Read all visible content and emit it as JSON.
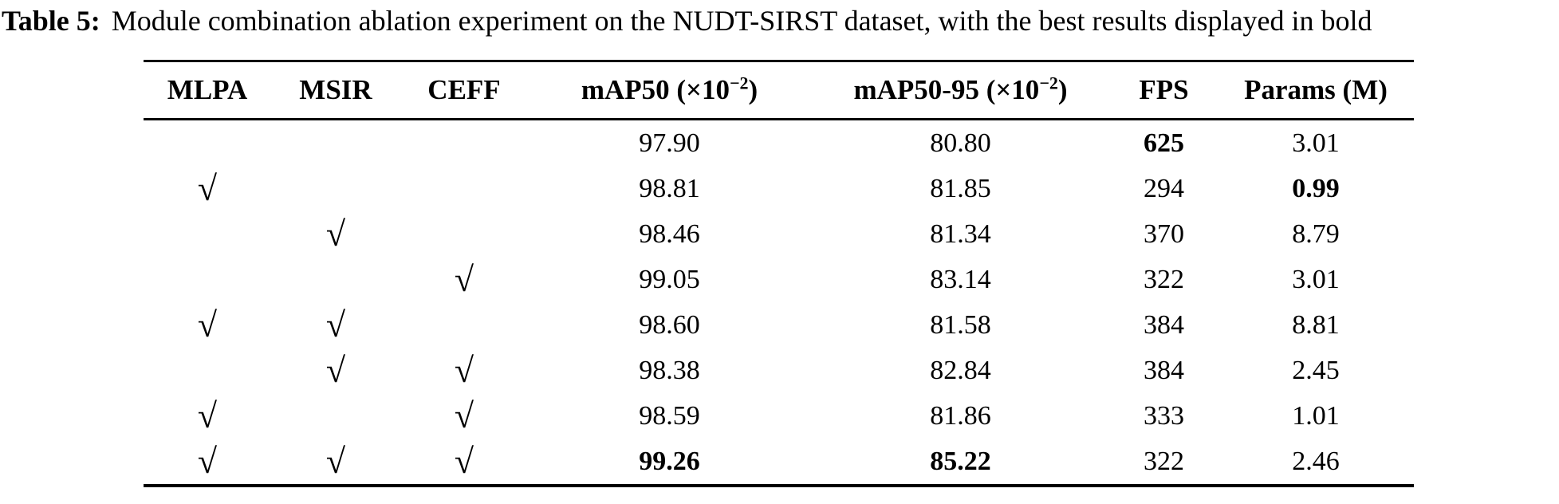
{
  "style": {
    "text_color": "#000000",
    "background_color": "#ffffff"
  },
  "caption": {
    "label": "Table 5:",
    "text": "Module combination ablation experiment on the NUDT-SIRST dataset, with the best results displayed in bold"
  },
  "table": {
    "check_glyph_name": "checkmark-radical-style",
    "headers": [
      {
        "text": "MLPA"
      },
      {
        "text": "MSIR"
      },
      {
        "text": "CEFF"
      },
      {
        "text": "mAP50 (×10",
        "sup": "−2",
        "suffix": ")"
      },
      {
        "text": "mAP50-95 (×10",
        "sup": "−2",
        "suffix": ")"
      },
      {
        "text": "FPS"
      },
      {
        "text": "Params (M)"
      }
    ],
    "rows": [
      {
        "cells": [
          {
            "v": "",
            "style": "normal"
          },
          {
            "v": "",
            "style": "normal"
          },
          {
            "v": "",
            "style": "normal"
          },
          {
            "v": "97.90",
            "style": "normal"
          },
          {
            "v": "80.80",
            "style": "normal"
          },
          {
            "v": "625",
            "style": "bold"
          },
          {
            "v": "3.01",
            "style": "normal"
          }
        ]
      },
      {
        "cells": [
          {
            "v": "√",
            "style": "normal"
          },
          {
            "v": "",
            "style": "normal"
          },
          {
            "v": "",
            "style": "normal"
          },
          {
            "v": "98.81",
            "style": "normal"
          },
          {
            "v": "81.85",
            "style": "normal"
          },
          {
            "v": "294",
            "style": "normal"
          },
          {
            "v": "0.99",
            "style": "bold"
          }
        ]
      },
      {
        "cells": [
          {
            "v": "",
            "style": "normal"
          },
          {
            "v": "√",
            "style": "normal"
          },
          {
            "v": "",
            "style": "normal"
          },
          {
            "v": "98.46",
            "style": "normal"
          },
          {
            "v": "81.34",
            "style": "normal"
          },
          {
            "v": "370",
            "style": "normal"
          },
          {
            "v": "8.79",
            "style": "normal"
          }
        ]
      },
      {
        "cells": [
          {
            "v": "",
            "style": "normal"
          },
          {
            "v": "",
            "style": "normal"
          },
          {
            "v": "√",
            "style": "normal"
          },
          {
            "v": "99.05",
            "style": "normal"
          },
          {
            "v": "83.14",
            "style": "normal"
          },
          {
            "v": "322",
            "style": "normal"
          },
          {
            "v": "3.01",
            "style": "normal"
          }
        ]
      },
      {
        "cells": [
          {
            "v": "√",
            "style": "normal"
          },
          {
            "v": "√",
            "style": "normal"
          },
          {
            "v": "",
            "style": "normal"
          },
          {
            "v": "98.60",
            "style": "normal"
          },
          {
            "v": "81.58",
            "style": "normal"
          },
          {
            "v": "384",
            "style": "normal"
          },
          {
            "v": "8.81",
            "style": "normal"
          }
        ]
      },
      {
        "cells": [
          {
            "v": "",
            "style": "normal"
          },
          {
            "v": "√",
            "style": "normal"
          },
          {
            "v": "√",
            "style": "normal"
          },
          {
            "v": "98.38",
            "style": "normal"
          },
          {
            "v": "82.84",
            "style": "normal"
          },
          {
            "v": "384",
            "style": "normal"
          },
          {
            "v": "2.45",
            "style": "normal"
          }
        ]
      },
      {
        "cells": [
          {
            "v": "√",
            "style": "normal"
          },
          {
            "v": "",
            "style": "normal"
          },
          {
            "v": "√",
            "style": "normal"
          },
          {
            "v": "98.59",
            "style": "normal"
          },
          {
            "v": "81.86",
            "style": "normal"
          },
          {
            "v": "333",
            "style": "normal"
          },
          {
            "v": "1.01",
            "style": "normal"
          }
        ]
      },
      {
        "cells": [
          {
            "v": "√",
            "style": "normal"
          },
          {
            "v": "√",
            "style": "normal"
          },
          {
            "v": "√",
            "style": "normal"
          },
          {
            "v": "99.26",
            "style": "bold"
          },
          {
            "v": "85.22",
            "style": "bold"
          },
          {
            "v": "322",
            "style": "normal"
          },
          {
            "v": "2.46",
            "style": "normal"
          }
        ]
      }
    ]
  }
}
